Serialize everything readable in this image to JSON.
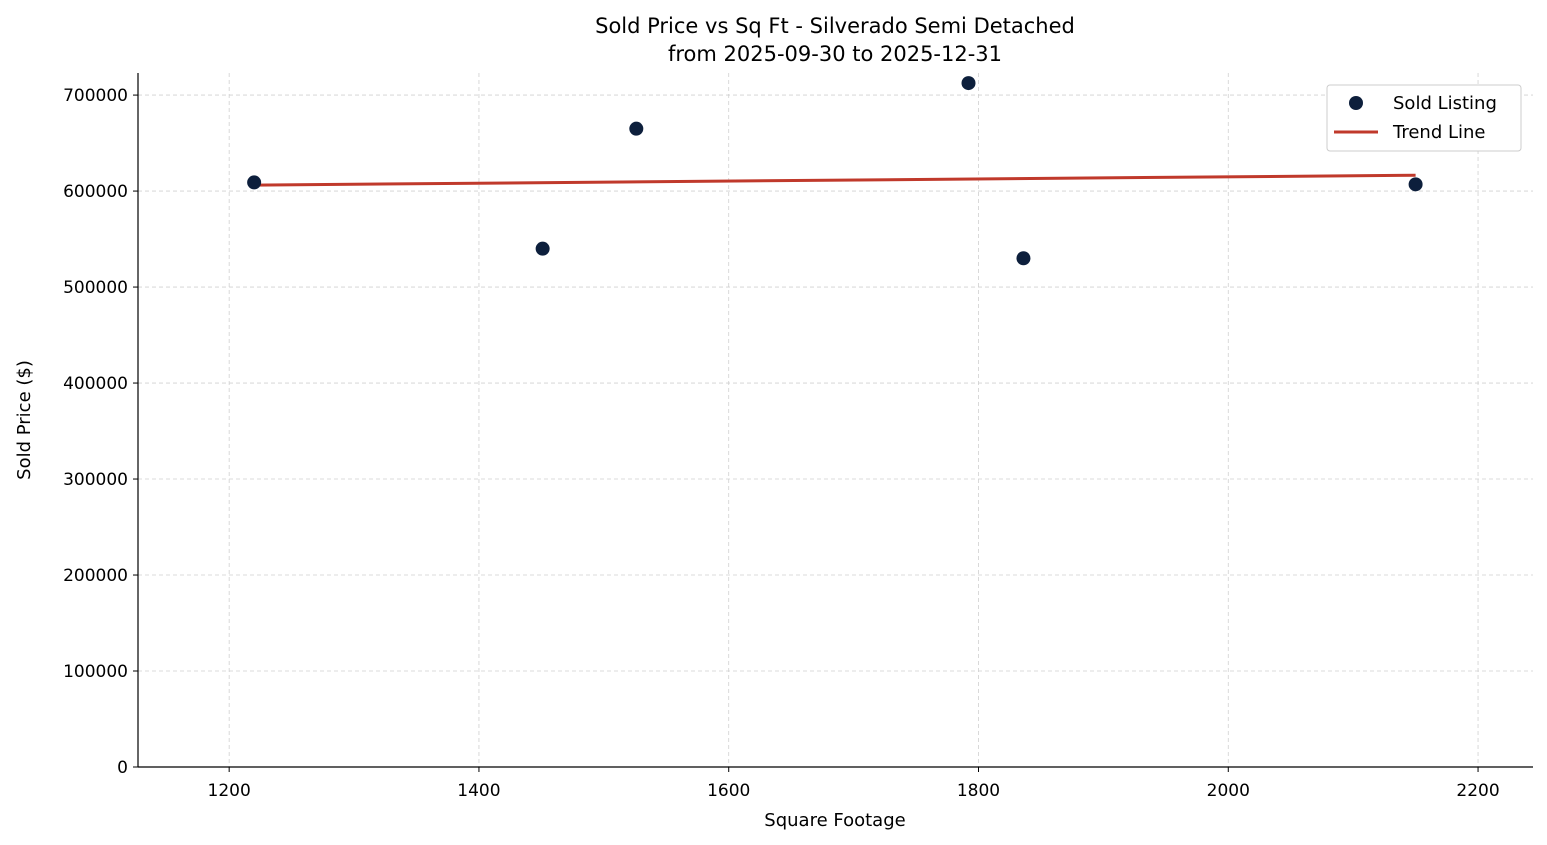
{
  "chart_data": {
    "type": "scatter",
    "title": "Sold Price vs Sq Ft - Silverado Semi Detached",
    "subtitle": "from 2025-09-30 to 2025-12-31",
    "xlabel": "Square Footage",
    "ylabel": "Sold Price ($)",
    "xlim": [
      1127,
      2244
    ],
    "ylim": [
      0,
      723000
    ],
    "xticks": [
      1200,
      1400,
      1600,
      1800,
      2000,
      2200
    ],
    "yticks": [
      0,
      100000,
      200000,
      300000,
      400000,
      500000,
      600000,
      700000
    ],
    "grid": true,
    "legend_placement": "top-right",
    "series": [
      {
        "name": "Sold Listing",
        "kind": "scatter",
        "color": "#0d1f3c",
        "points": [
          [
            1220,
            609000
          ],
          [
            1451,
            540000
          ],
          [
            1526,
            665000
          ],
          [
            1792,
            712500
          ],
          [
            1836,
            530000
          ],
          [
            2150,
            607000
          ]
        ]
      },
      {
        "name": "Trend Line",
        "kind": "line",
        "color": "#c0392b",
        "points": [
          [
            1220,
            606200
          ],
          [
            2150,
            616500
          ]
        ]
      }
    ]
  }
}
